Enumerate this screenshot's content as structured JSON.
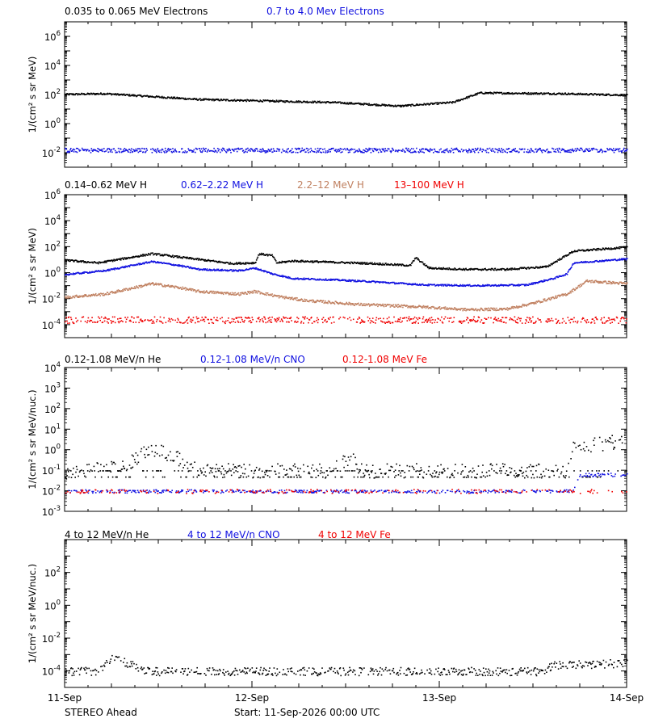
{
  "footer": {
    "spacecraft": "STEREO Ahead",
    "start": "Start: 11-Sep-2026 00:00 UTC"
  },
  "colors": {
    "black": "#000000",
    "blue": "#1010e0",
    "tan": "#c08060",
    "red": "#f00000"
  },
  "chart_data": [
    {
      "type": "scatter",
      "ylabel": "1/(cm² s sr MeV)",
      "yscale": "log",
      "ylim_exp": [
        -3,
        7
      ],
      "yticks": [
        {
          "base": "10",
          "exp": "6",
          "e": 6
        },
        {
          "base": "10",
          "exp": "4",
          "e": 4
        },
        {
          "base": "10",
          "exp": "2",
          "e": 2
        },
        {
          "base": "10",
          "exp": "0",
          "e": 0
        },
        {
          "base": "10",
          "exp": "-2",
          "e": -2
        }
      ],
      "series": [
        {
          "name": "0.035 to 0.065 MeV Electrons",
          "color": "black",
          "profile": [
            [
              0,
              2.05
            ],
            [
              0.3,
              2.1
            ],
            [
              1.0,
              1.7
            ],
            [
              2.0,
              1.5
            ],
            [
              2.5,
              1.25
            ],
            [
              2.9,
              1.5
            ],
            [
              3.1,
              2.15
            ],
            [
              3.7,
              2.1
            ],
            [
              4.2,
              2.0
            ]
          ],
          "noise": 0.06
        },
        {
          "name": "0.7 to 4.0 Mev Electrons",
          "color": "blue",
          "profile": [
            [
              0,
              -1.8
            ],
            [
              4.2,
              -1.8
            ]
          ],
          "noise": 0.15,
          "drops": 0.15
        }
      ]
    },
    {
      "type": "scatter",
      "ylabel": "1/(cm² s sr MeV)",
      "yscale": "log",
      "ylim_exp": [
        -5,
        6
      ],
      "yticks": [
        {
          "base": "10",
          "exp": "6",
          "e": 6
        },
        {
          "base": "10",
          "exp": "4",
          "e": 4
        },
        {
          "base": "10",
          "exp": "2",
          "e": 2
        },
        {
          "base": "10",
          "exp": "0",
          "e": 0
        },
        {
          "base": "10",
          "exp": "-2",
          "e": -2
        },
        {
          "base": "10",
          "exp": "-4",
          "e": -4
        }
      ],
      "series": [
        {
          "name": "0.14–0.62 MeV H",
          "color": "black",
          "profile": [
            [
              0,
              1.0
            ],
            [
              0.25,
              0.8
            ],
            [
              0.65,
              1.5
            ],
            [
              0.85,
              1.25
            ],
            [
              1.05,
              1.0
            ],
            [
              1.25,
              0.75
            ],
            [
              1.42,
              0.8
            ],
            [
              1.45,
              1.5
            ],
            [
              1.55,
              1.35
            ],
            [
              1.58,
              0.8
            ],
            [
              1.7,
              0.95
            ],
            [
              2.3,
              0.75
            ],
            [
              2.58,
              0.6
            ],
            [
              2.62,
              1.2
            ],
            [
              2.72,
              0.4
            ],
            [
              3.0,
              0.3
            ],
            [
              3.3,
              0.3
            ],
            [
              3.6,
              0.5
            ],
            [
              3.8,
              1.7
            ],
            [
              4.2,
              2.0
            ]
          ],
          "noise": 0.07
        },
        {
          "name": "0.62–2.22 MeV H",
          "color": "blue",
          "profile": [
            [
              0,
              -0.1
            ],
            [
              0.3,
              0.2
            ],
            [
              0.65,
              0.9
            ],
            [
              0.85,
              0.6
            ],
            [
              1.0,
              0.3
            ],
            [
              1.3,
              0.2
            ],
            [
              1.42,
              0.4
            ],
            [
              1.55,
              -0.05
            ],
            [
              1.7,
              -0.4
            ],
            [
              2.0,
              -0.5
            ],
            [
              2.3,
              -0.65
            ],
            [
              2.7,
              -0.9
            ],
            [
              3.1,
              -0.95
            ],
            [
              3.45,
              -0.9
            ],
            [
              3.65,
              -0.4
            ],
            [
              3.75,
              -0.05
            ],
            [
              3.8,
              0.8
            ],
            [
              4.2,
              1.1
            ]
          ],
          "noise": 0.06
        },
        {
          "name": "2.2–12 MeV H",
          "color": "tan",
          "profile": [
            [
              0,
              -1.85
            ],
            [
              0.3,
              -1.6
            ],
            [
              0.65,
              -0.8
            ],
            [
              0.85,
              -1.1
            ],
            [
              1.0,
              -1.4
            ],
            [
              1.3,
              -1.6
            ],
            [
              1.42,
              -1.4
            ],
            [
              1.6,
              -1.8
            ],
            [
              1.8,
              -2.1
            ],
            [
              2.2,
              -2.4
            ],
            [
              2.7,
              -2.6
            ],
            [
              3.0,
              -2.8
            ],
            [
              3.3,
              -2.75
            ],
            [
              3.5,
              -2.3
            ],
            [
              3.75,
              -1.6
            ],
            [
              3.9,
              -0.6
            ],
            [
              4.2,
              -0.8
            ]
          ],
          "noise": 0.1
        },
        {
          "name": "13–100 MeV H",
          "color": "red",
          "profile": [
            [
              0,
              -3.6
            ],
            [
              4.2,
              -3.6
            ]
          ],
          "noise": 0.25,
          "drops": 0.35
        }
      ]
    },
    {
      "type": "scatter",
      "ylabel": "1/(cm² s sr MeV/nuc.)",
      "yscale": "log",
      "ylim_exp": [
        -3,
        4
      ],
      "yticks": [
        {
          "base": "10",
          "exp": "4",
          "e": 4
        },
        {
          "base": "10",
          "exp": "3",
          "e": 3
        },
        {
          "base": "10",
          "exp": "2",
          "e": 2
        },
        {
          "base": "10",
          "exp": "1",
          "e": 1
        },
        {
          "base": "10",
          "exp": "0",
          "e": 0
        },
        {
          "base": "10",
          "exp": "-1",
          "e": -1
        },
        {
          "base": "10",
          "exp": "-2",
          "e": -2
        },
        {
          "base": "10",
          "exp": "-3",
          "e": -3
        }
      ],
      "series": [
        {
          "name": "0.12-1.08 MeV/n He",
          "color": "black",
          "profile": [
            [
              0,
              -1.05
            ],
            [
              0.45,
              -0.7
            ],
            [
              0.65,
              0.05
            ],
            [
              0.85,
              -0.4
            ],
            [
              1.0,
              -1.0
            ],
            [
              2.0,
              -1.0
            ],
            [
              2.15,
              -0.2
            ],
            [
              2.2,
              -1.0
            ],
            [
              3.2,
              -1.0
            ],
            [
              3.55,
              -1.0
            ],
            [
              3.75,
              -1.0
            ],
            [
              3.8,
              0.1
            ],
            [
              4.2,
              0.5
            ]
          ],
          "noise": 0.35,
          "quant": -1.8,
          "drops": 0.3
        },
        {
          "name": "0.12-1.08 MeV/n CNO",
          "color": "blue",
          "profile": [
            [
              0,
              -2.0
            ],
            [
              3.8,
              -2.0
            ],
            [
              3.85,
              -1.2
            ],
            [
              4.2,
              -1.2
            ]
          ],
          "noise": 0.08,
          "drops": 0.5
        },
        {
          "name": "0.12-1.08 MeV Fe",
          "color": "red",
          "profile": [
            [
              0,
              -2.0
            ],
            [
              4.2,
              -2.0
            ]
          ],
          "noise": 0.1,
          "drops": 0.75
        }
      ]
    },
    {
      "type": "scatter",
      "ylabel": "1/(cm² s sr MeV/nuc.)",
      "yscale": "log",
      "ylim_exp": [
        -5,
        4
      ],
      "yticks": [
        {
          "base": "10",
          "exp": "2",
          "e": 2
        },
        {
          "base": "10",
          "exp": "0",
          "e": 0
        },
        {
          "base": "10",
          "exp": "-2",
          "e": -2
        },
        {
          "base": "10",
          "exp": "-4",
          "e": -4
        }
      ],
      "xticks": [
        "11-Sep",
        "12-Sep",
        "13-Sep",
        "14-Sep"
      ],
      "series": [
        {
          "name": "4 to 12 MeV/n He",
          "color": "black",
          "profile": [
            [
              0,
              -4.0
            ],
            [
              0.25,
              -4.0
            ],
            [
              0.35,
              -3.1
            ],
            [
              0.5,
              -3.6
            ],
            [
              0.6,
              -4.0
            ],
            [
              3.55,
              -4.0
            ],
            [
              3.65,
              -3.6
            ],
            [
              4.2,
              -3.5
            ]
          ],
          "noise": 0.25,
          "drops": 0.4
        },
        {
          "name": "4 to 12 MeV/n CNO",
          "color": "blue",
          "profile": [
            [
              0,
              -5.1
            ],
            [
              4.2,
              -5.1
            ]
          ],
          "noise": 0.0,
          "drops": 0.98
        },
        {
          "name": "4 to 12 MeV Fe",
          "color": "red",
          "profile": [
            [
              0,
              -5.1
            ],
            [
              4.2,
              -5.1
            ]
          ],
          "noise": 0.0,
          "drops": 0.99
        }
      ]
    }
  ]
}
